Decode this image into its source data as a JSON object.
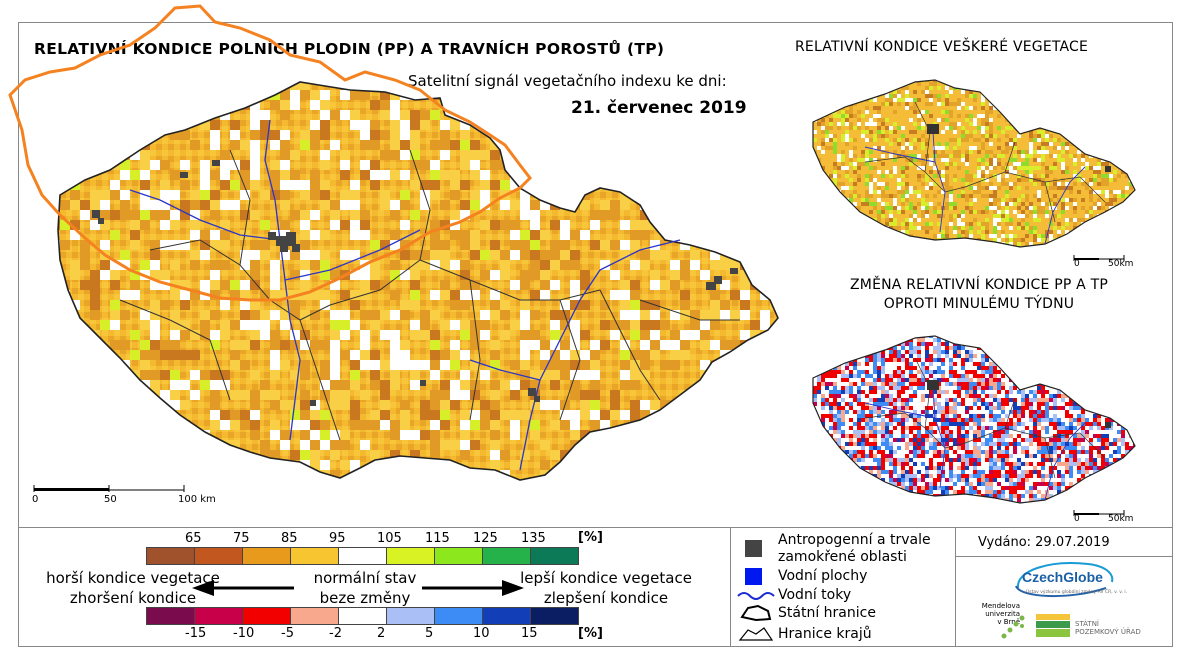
{
  "header": {
    "main_title": "RELATIVNÍ KONDICE POLNÍCH PLODIN (PP) A TRAVNÍCH POROSTŮ (TP)",
    "subtitle": "Satelitní signál vegetačního indexu ke dni:",
    "date": "21. červenec 2019"
  },
  "right_maps": {
    "title_top": "RELATIVNÍ KONDICE VEŠKERÉ VEGETACE",
    "title_bottom_line1": "ZMĚNA RELATIVNÍ KONDICE PP A TP",
    "title_bottom_line2": "OPROTI MINULÉMU TÝDNU"
  },
  "scale_main": {
    "t0": "0",
    "t1": "50",
    "t2": "100 km"
  },
  "scale_small_top": {
    "t0": "0",
    "t1": "50km"
  },
  "scale_small_bottom": {
    "t0": "0",
    "t1": "50km"
  },
  "legend_condition": {
    "ticks": [
      "65",
      "75",
      "85",
      "95",
      "105",
      "115",
      "125",
      "135"
    ],
    "unit": "[%]",
    "colors": [
      "#a0522d",
      "#c2571f",
      "#e89a1c",
      "#f7c530",
      "#ffffff",
      "#d8f224",
      "#8ce81c",
      "#25b24a",
      "#0c7a57"
    ]
  },
  "legend_change": {
    "ticks": [
      "-15",
      "-10",
      "-5",
      "-2",
      "2",
      "5",
      "10",
      "15"
    ],
    "unit": "[%]",
    "colors": [
      "#7a0b4c",
      "#c8004a",
      "#f20000",
      "#f8a88c",
      "#ffffff",
      "#a9bff5",
      "#3d8cf5",
      "#123fb8",
      "#0b1e63"
    ]
  },
  "legend_text": {
    "worse1": "horší kondice vegetace",
    "worse2": "zhoršení kondice",
    "normal1": "normální stav",
    "normal2": "beze změny",
    "better1": "lepší kondice vegetace",
    "better2": "zlepšení kondice"
  },
  "legend_symbols": {
    "anthro1": "Antropogenní a trvale",
    "anthro2": "zamokřené oblasti",
    "water": "Vodní plochy",
    "rivers": "Vodní toky",
    "borders": "Státní hranice",
    "regions": "Hranice krajů"
  },
  "issued": "Vydáno: 29.07.2019",
  "logos": {
    "czechglobe": "CzechGlobe",
    "czechglobe_sub": "Ústav výzkumu globální změny AV ČR, v. v. i.",
    "mendel1": "Mendelova",
    "mendel2": "univerzita",
    "mendel3": "v Brně",
    "spu1": "STÁTNÍ",
    "spu2": "POZEMKOVÝ ÚŘAD"
  }
}
